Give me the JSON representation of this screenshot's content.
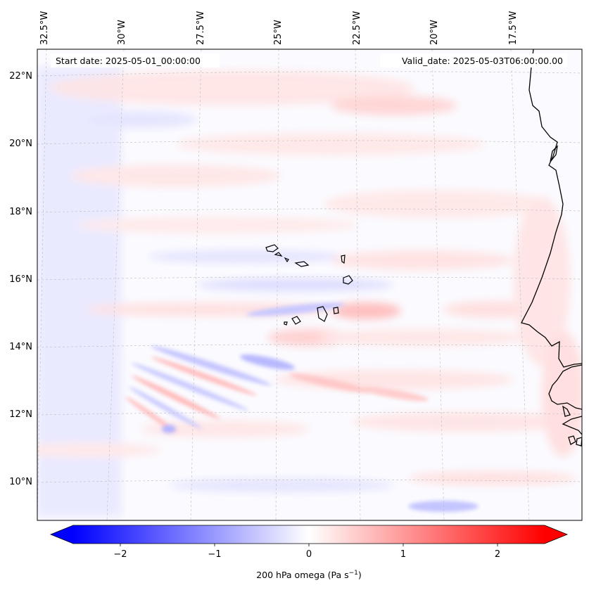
{
  "map": {
    "start_date": "Start date: 2025-05-01_00:00:00",
    "valid_date": "Valid_date: 2025-05-03T06:00:00.00",
    "lon_labels": [
      "32.5°W",
      "30°W",
      "27.5°W",
      "25°W",
      "22.5°W",
      "20°W",
      "17.5°W"
    ],
    "lat_labels": [
      "22°N",
      "20°N",
      "18°N",
      "16°N",
      "14°N",
      "12°N",
      "10°N"
    ],
    "field": "200 hPa omega",
    "lon_range": [
      -33,
      -15
    ],
    "lat_range": [
      8.9,
      22.8
    ]
  },
  "colorbar": {
    "label": "200 hPa omega (Pa s",
    "label_exp": "−1",
    "label_close": ")",
    "ticks": [
      "−2",
      "−1",
      "0",
      "1",
      "2"
    ],
    "range": [
      -2.5,
      2.5
    ],
    "colormap": "bwr",
    "colors": {
      "min": "#0000ff",
      "mid": "#ffffff",
      "max": "#ff0000"
    }
  }
}
